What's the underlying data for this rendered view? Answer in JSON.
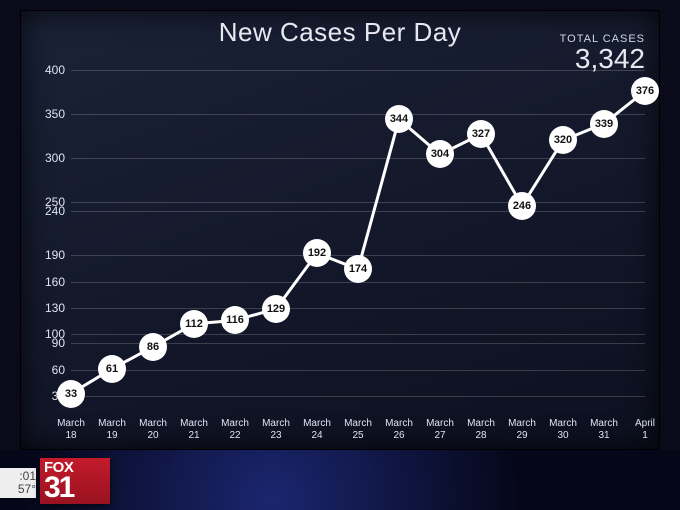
{
  "chart": {
    "type": "line",
    "title": "New Cases Per Day",
    "title_fontsize": 26,
    "total_label": "TOTAL CASES",
    "total_value": "3,342",
    "background_gradient": [
      "#1b2238",
      "#121628",
      "#0d1020"
    ],
    "text_color": "#e8e8f0",
    "grid_color": "rgba(255,255,255,.18)",
    "line_color": "#ffffff",
    "line_width": 3,
    "marker_fill": "#ffffff",
    "marker_text_color": "#111111",
    "marker_radius": 14,
    "marker_fontsize": 11,
    "y_ticks": [
      30,
      60,
      90,
      100,
      130,
      160,
      190,
      240,
      250,
      300,
      350,
      400
    ],
    "y_min": 20,
    "y_max": 410,
    "x_labels": [
      {
        "top": "March",
        "bot": "18"
      },
      {
        "top": "March",
        "bot": "19"
      },
      {
        "top": "March",
        "bot": "20"
      },
      {
        "top": "March",
        "bot": "21"
      },
      {
        "top": "March",
        "bot": "22"
      },
      {
        "top": "March",
        "bot": "23"
      },
      {
        "top": "March",
        "bot": "24"
      },
      {
        "top": "March",
        "bot": "25"
      },
      {
        "top": "March",
        "bot": "26"
      },
      {
        "top": "March",
        "bot": "27"
      },
      {
        "top": "March",
        "bot": "28"
      },
      {
        "top": "March",
        "bot": "29"
      },
      {
        "top": "March",
        "bot": "30"
      },
      {
        "top": "March",
        "bot": "31"
      },
      {
        "top": "April",
        "bot": "1"
      }
    ],
    "values": [
      33,
      61,
      86,
      112,
      116,
      129,
      192,
      174,
      344,
      304,
      327,
      246,
      320,
      339,
      376
    ]
  },
  "branding": {
    "network": "FOX",
    "channel": "31",
    "clock_top": ":01",
    "clock_bot": "57°"
  }
}
